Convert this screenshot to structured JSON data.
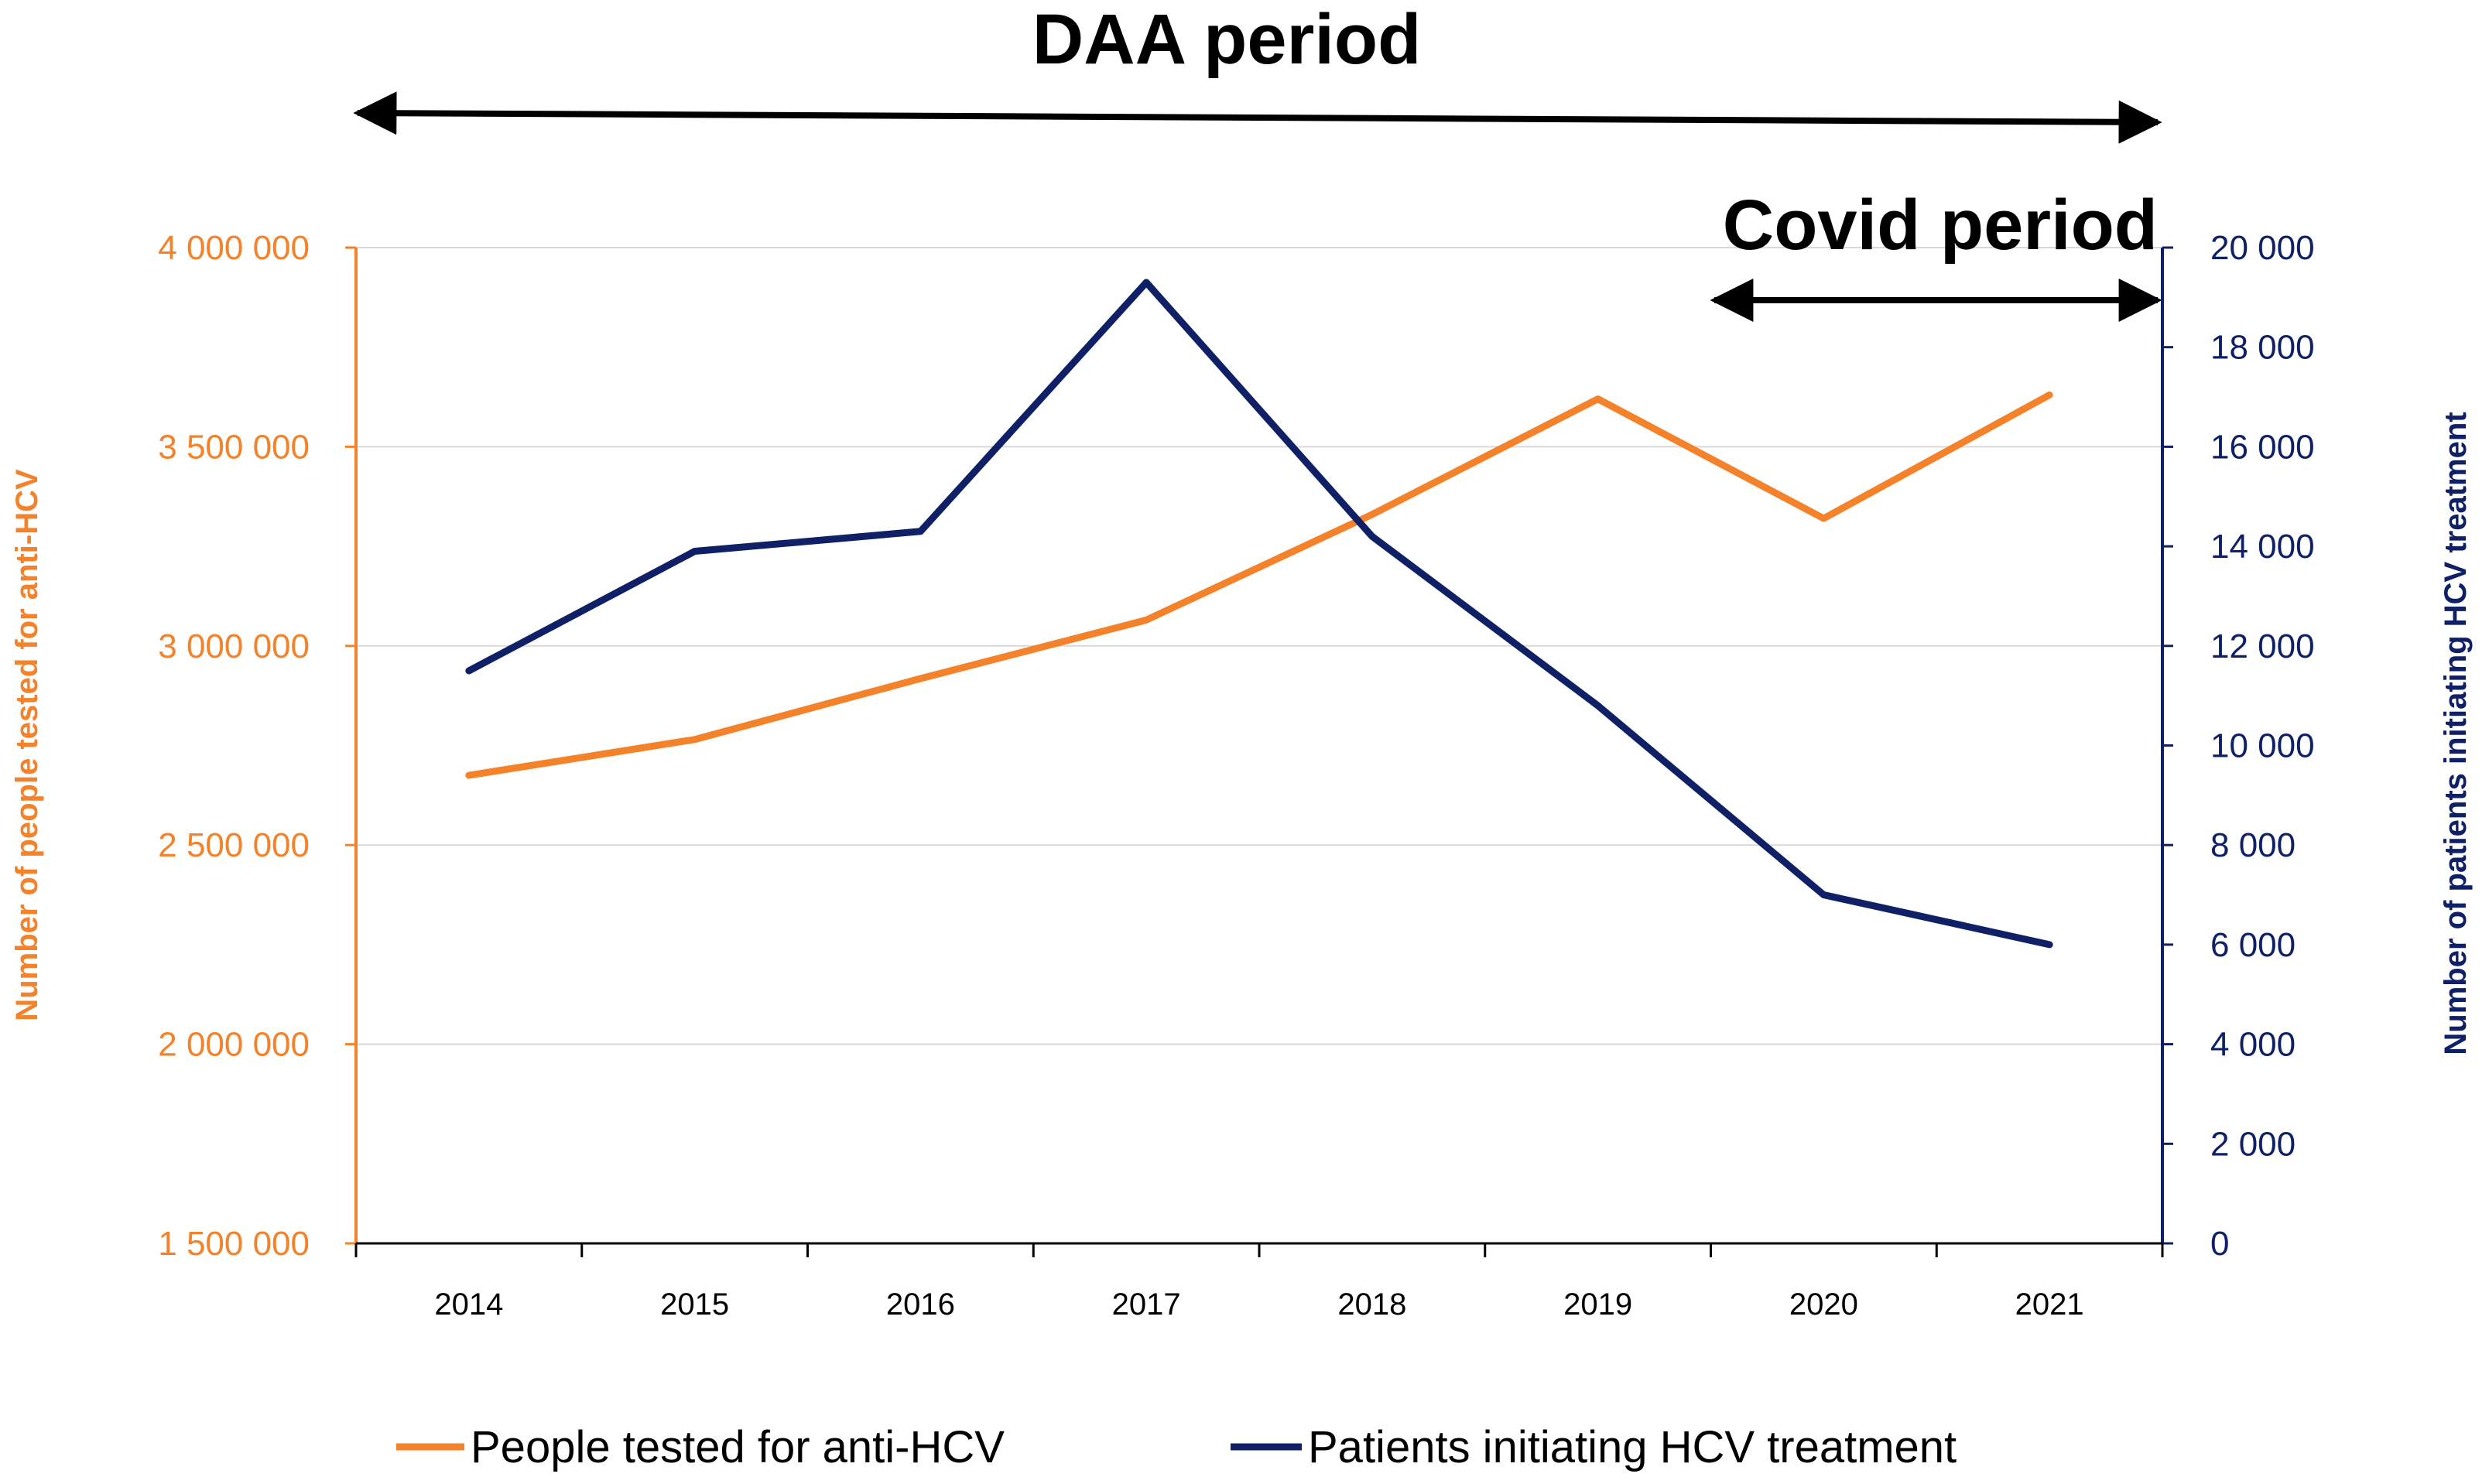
{
  "chart_data": {
    "type": "line",
    "title": "DAA period",
    "annotations": [
      "DAA period",
      "Covid period"
    ],
    "categories": [
      "2014",
      "2015",
      "2016",
      "2017",
      "2018",
      "2019",
      "2020",
      "2021"
    ],
    "series": [
      {
        "name": "People tested for anti-HCV",
        "axis": "left",
        "color": "#F4822A",
        "values": [
          2675000,
          2765000,
          2918000,
          3065000,
          3330000,
          3620000,
          3320000,
          3630000
        ]
      },
      {
        "name": "Patients initiating HCV treatment",
        "axis": "right",
        "color": "#0F2066",
        "values": [
          11500,
          13900,
          14300,
          19300,
          14200,
          10800,
          7000,
          6000
        ]
      }
    ],
    "y_left": {
      "label": "Number of people tested for anti-HCV",
      "range": [
        1500000,
        4000000
      ],
      "ticks": [
        "1 500 000",
        "2 000 000",
        "2 500 000",
        "3 000 000",
        "3 500 000",
        "4 000 000"
      ],
      "tick_values": [
        1500000,
        2000000,
        2500000,
        3000000,
        3500000,
        4000000
      ]
    },
    "y_right": {
      "label": "Number of patients initiating HCV treatment",
      "range": [
        0,
        20000
      ],
      "ticks": [
        "0",
        "2 000",
        "4 000",
        "6 000",
        "8 000",
        "10 000",
        "12 000",
        "14 000",
        "16 000",
        "18 000",
        "20 000"
      ],
      "tick_values": [
        0,
        2000,
        4000,
        6000,
        8000,
        10000,
        12000,
        14000,
        16000,
        18000,
        20000
      ]
    },
    "gridlines": true,
    "legend_position": "bottom"
  }
}
